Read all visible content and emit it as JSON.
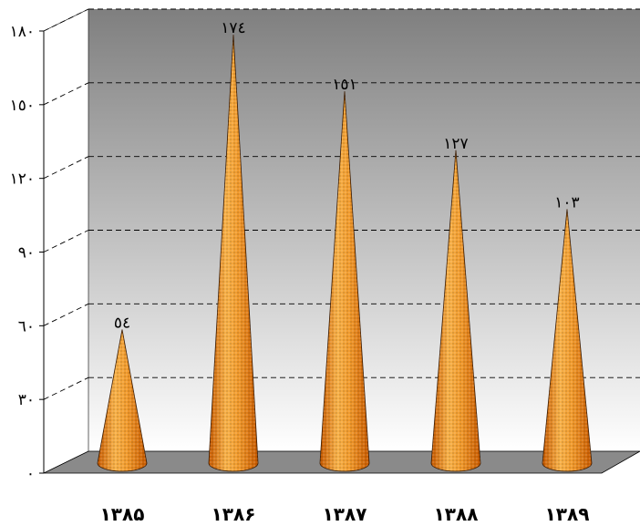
{
  "chart_data": {
    "type": "bar",
    "bar_shape": "3d-cone",
    "title": "",
    "xlabel": "",
    "ylabel": "",
    "categories": [
      "۱۳۸۵",
      "۱۳۸۶",
      "۱۳۸۷",
      "۱۳۸۸",
      "۱۳۸۹"
    ],
    "values": [
      54,
      174,
      151,
      127,
      103
    ],
    "data_labels": [
      "٥٤",
      "١٧٤",
      "١٥١",
      "١٢٧",
      "١٠٣"
    ],
    "ylim": [
      0,
      180
    ],
    "yticks": [
      0,
      30,
      60,
      90,
      120,
      150,
      180
    ],
    "ytick_labels": [
      "٠",
      "٣٠",
      "٦٠",
      "٩٠",
      "١٢٠",
      "١٥٠",
      "١٨٠"
    ],
    "grid": true,
    "legend": "none",
    "colors": {
      "cone_light": "#f8b24a",
      "cone_dark": "#c85a00",
      "backwall_top": "#7f7f7f",
      "backwall_bottom": "#ffffff",
      "floor": "#8a8a8a"
    }
  }
}
